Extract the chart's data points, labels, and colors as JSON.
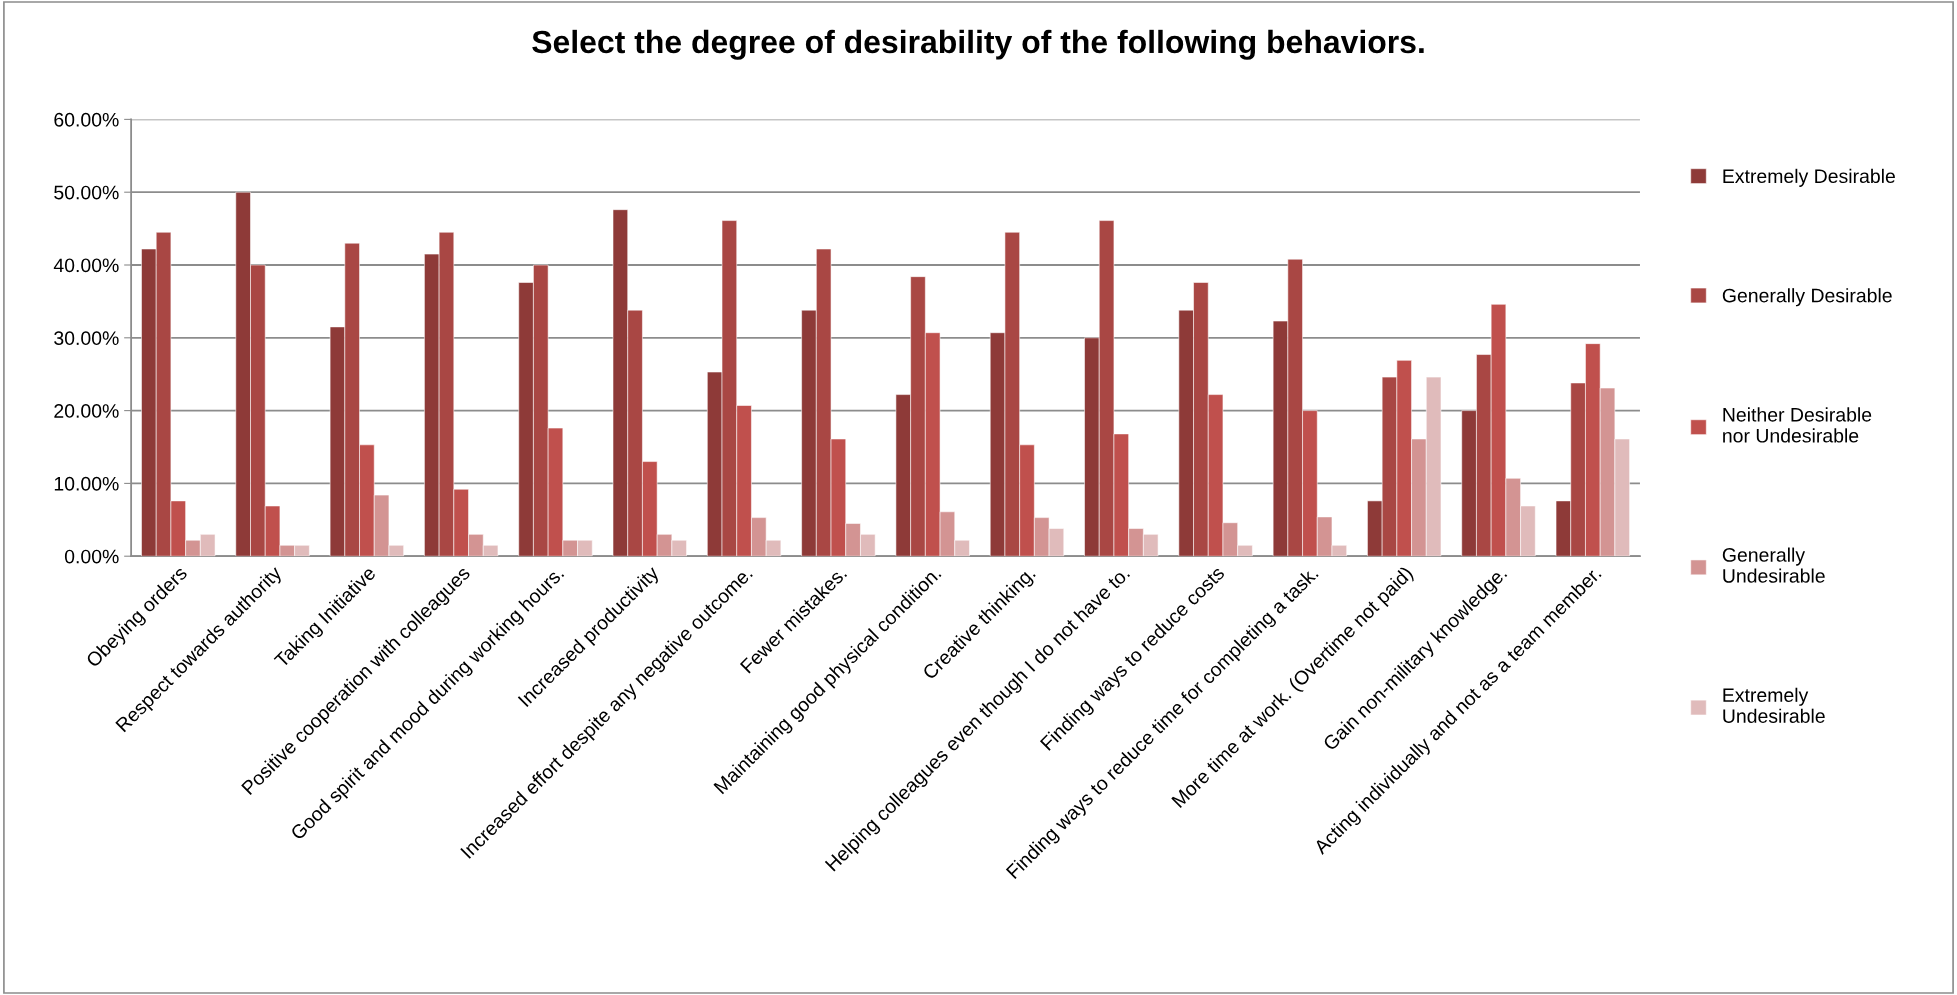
{
  "chart_data": {
    "type": "bar",
    "title": "Select the degree of desirability of the following behaviors.",
    "categories": [
      "Obeying orders",
      "Respect towards authority",
      "Taking Initiative",
      "Positive cooperation with colleagues",
      "Good spirit and mood during working hours.",
      "Increased productivity",
      "Increased effort despite any negative outcome.",
      "Fewer mistakes.",
      "Maintaining good physical condition.",
      "Creative thinking.",
      "Helping colleagues even though I do not have to.",
      "Finding ways to reduce costs",
      "Finding ways to reduce time for completing a task.",
      "More time at work. (Overtime not paid)",
      "Gain non-military knowledge.",
      "Acting individually and not as a team member."
    ],
    "series": [
      {
        "name": "Extremely Desirable",
        "color": "#8e3a38",
        "values": [
          42.2,
          50.0,
          31.5,
          41.5,
          37.6,
          47.6,
          25.3,
          33.8,
          22.2,
          30.7,
          30.0,
          33.8,
          32.3,
          7.6,
          20.0,
          7.6
        ]
      },
      {
        "name": "Generally Desirable",
        "color": "#a94744",
        "values": [
          44.5,
          40.0,
          43.0,
          44.5,
          40.0,
          33.8,
          46.1,
          42.2,
          38.4,
          44.5,
          46.1,
          37.6,
          40.8,
          24.6,
          27.7,
          23.8
        ]
      },
      {
        "name": "Neither Desirable\nnor Undesirable",
        "color": "#c0504d",
        "values": [
          7.6,
          6.9,
          15.3,
          9.2,
          17.6,
          13.0,
          20.7,
          16.1,
          30.7,
          15.3,
          16.8,
          22.2,
          20.0,
          26.9,
          34.6,
          29.2
        ]
      },
      {
        "name": "Generally\nUndesirable",
        "color": "#d39493",
        "values": [
          2.2,
          1.5,
          8.4,
          3.0,
          2.2,
          3.0,
          5.3,
          4.5,
          6.1,
          5.3,
          3.8,
          4.6,
          5.4,
          16.1,
          10.7,
          23.1
        ]
      },
      {
        "name": "Extremely\nUndesirable",
        "color": "#e0bbbb",
        "values": [
          3.0,
          1.5,
          1.5,
          1.5,
          2.2,
          2.2,
          2.2,
          3.0,
          2.2,
          3.8,
          3.0,
          1.5,
          1.5,
          24.6,
          6.9,
          16.1
        ]
      }
    ],
    "ylim": [
      0,
      60
    ],
    "yticks": [
      {
        "value": 0,
        "label": "0.00%"
      },
      {
        "value": 10,
        "label": "10.00%"
      },
      {
        "value": 20,
        "label": "20.00%"
      },
      {
        "value": 30,
        "label": "30.00%"
      },
      {
        "value": 40,
        "label": "40.00%"
      },
      {
        "value": 50,
        "label": "50.00%"
      },
      {
        "value": 60,
        "label": "60.00%"
      }
    ],
    "grid": "y",
    "legend": "right"
  }
}
